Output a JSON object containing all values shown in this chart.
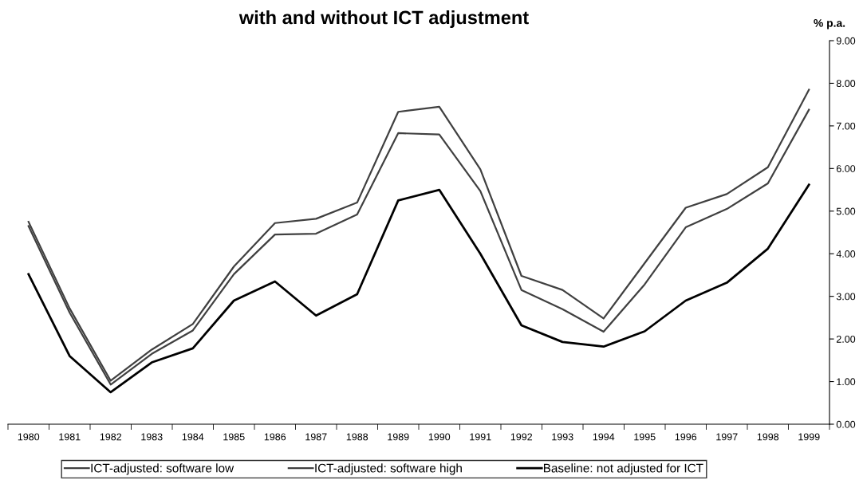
{
  "chart_data": {
    "type": "line",
    "title": "with and without ICT adjustment",
    "ylabel": "% p.a.",
    "categories": [
      "1980",
      "1981",
      "1982",
      "1983",
      "1984",
      "1985",
      "1986",
      "1987",
      "1988",
      "1989",
      "1990",
      "1991",
      "1992",
      "1993",
      "1994",
      "1995",
      "1996",
      "1997",
      "1998",
      "1999"
    ],
    "series": [
      {
        "name": "ICT-adjusted: software low",
        "color": "#404040",
        "values": [
          4.75,
          2.72,
          1.02,
          1.75,
          2.35,
          3.7,
          4.72,
          4.82,
          5.2,
          7.33,
          7.45,
          5.98,
          3.48,
          3.15,
          2.48,
          3.78,
          5.08,
          5.4,
          6.03,
          7.85
        ]
      },
      {
        "name": "ICT-adjusted: software high",
        "color": "#404040",
        "values": [
          4.65,
          2.62,
          0.93,
          1.65,
          2.2,
          3.52,
          4.45,
          4.47,
          4.92,
          6.83,
          6.8,
          5.47,
          3.15,
          2.7,
          2.17,
          3.28,
          4.62,
          5.05,
          5.65,
          7.38
        ]
      },
      {
        "name": "Baseline: not adjusted for ICT",
        "color": "#000000",
        "values": [
          3.52,
          1.6,
          0.75,
          1.45,
          1.78,
          2.9,
          3.35,
          2.55,
          3.05,
          5.25,
          5.5,
          4.0,
          2.32,
          1.93,
          1.82,
          2.18,
          2.9,
          3.32,
          4.12,
          5.62
        ]
      }
    ],
    "ylim": [
      0,
      9
    ],
    "yticks": [
      {
        "value": 0,
        "label": "0.00"
      },
      {
        "value": 1,
        "label": "1.00"
      },
      {
        "value": 2,
        "label": "2.00"
      },
      {
        "value": 3,
        "label": "3.00"
      },
      {
        "value": 4,
        "label": "4.00"
      },
      {
        "value": 5,
        "label": "5.00"
      },
      {
        "value": 6,
        "label": "6.00"
      },
      {
        "value": 7,
        "label": "7.00"
      },
      {
        "value": 8,
        "label": "8.00"
      },
      {
        "value": 9,
        "label": "9.00"
      }
    ],
    "grid": false,
    "legend": "bottom",
    "marker": "none",
    "line_style": "solid"
  }
}
